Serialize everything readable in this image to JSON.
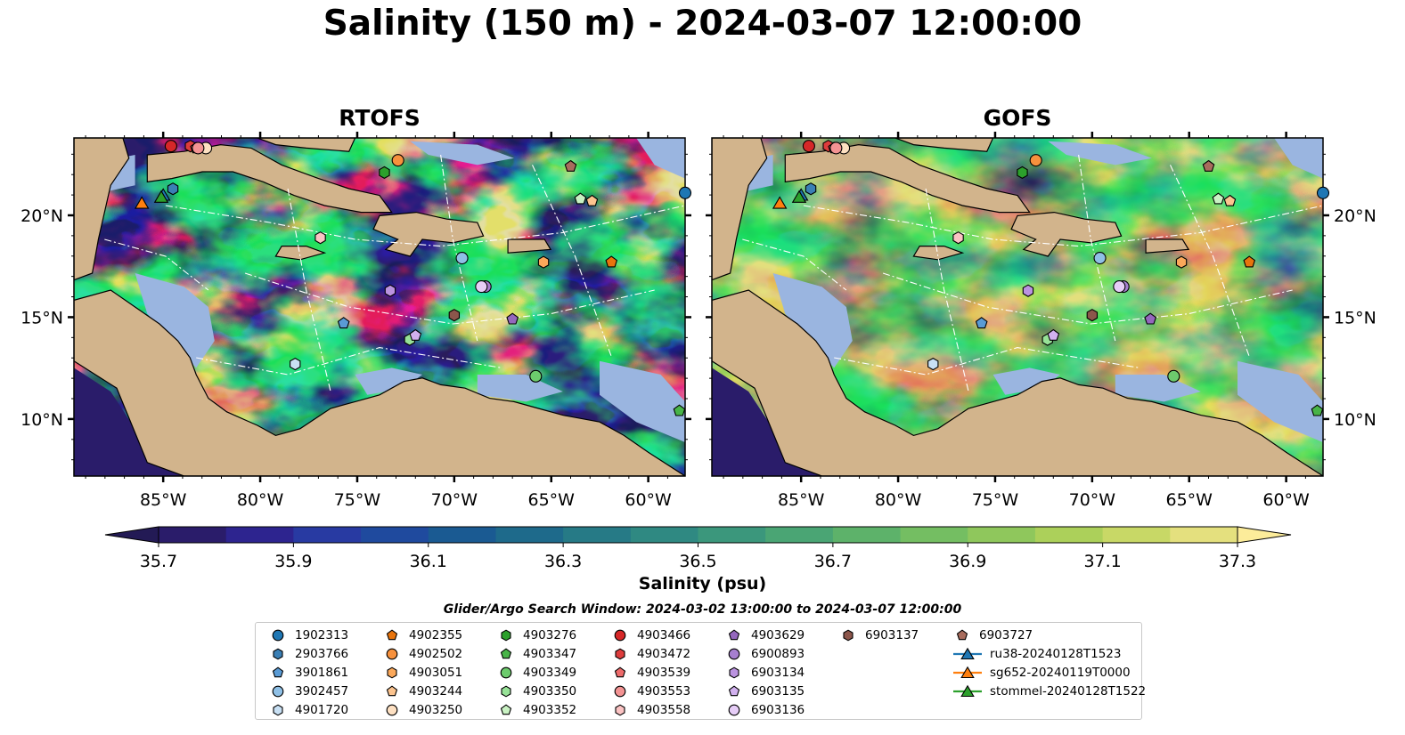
{
  "title": "Salinity (150 m) - 2024-03-07 12:00:00",
  "panels": [
    {
      "id": "rtofs",
      "title": "RTOFS",
      "field_tone": "variable"
    },
    {
      "id": "gofs",
      "title": "GOFS",
      "field_tone": "uniform"
    }
  ],
  "axes": {
    "x_ticks": [
      "85°W",
      "80°W",
      "75°W",
      "70°W",
      "65°W",
      "60°W"
    ],
    "x_tick_lon": [
      -85,
      -80,
      -75,
      -70,
      -65,
      -60
    ],
    "y_ticks": [
      "20°N",
      "15°N",
      "10°N"
    ],
    "y_tick_lat": [
      20,
      15,
      10
    ],
    "lon_range": [
      -89.6,
      -58.1
    ],
    "lat_range": [
      7.2,
      23.8
    ]
  },
  "colorbar": {
    "label": "Salinity (psu)",
    "tick_labels": [
      "35.7",
      "35.9",
      "36.1",
      "36.3",
      "36.5",
      "36.7",
      "36.9",
      "37.1",
      "37.3"
    ],
    "min": 35.7,
    "max": 37.3,
    "step": 0.1,
    "extend": "both",
    "colormap": "haline",
    "colors": [
      "#2a1c6a",
      "#2d248f",
      "#283aa2",
      "#1f4a9e",
      "#1a5a92",
      "#1e6a8b",
      "#267a86",
      "#2f8982",
      "#3b977c",
      "#4aa574",
      "#5db26a",
      "#74be62",
      "#8fc75c",
      "#acd05a",
      "#c8d866",
      "#e4e07e"
    ],
    "under_color": "#231a55",
    "over_color": "#fcec9a"
  },
  "map_colors": {
    "land": "#d2b48c",
    "shelf": "#9ab5e0",
    "deep_pacific": "#2a1c6a",
    "eez": "#ffffff",
    "coast": "#000000"
  },
  "legend": {
    "title": "Glider/Argo Search Window: 2024-03-02 13:00:00 to 2024-03-07 12:00:00",
    "items": [
      {
        "label": "1902313",
        "marker": "circle",
        "color": "#1f77b4"
      },
      {
        "label": "2903766",
        "marker": "hexagon",
        "color": "#3a7fb5"
      },
      {
        "label": "3901861",
        "marker": "pentagon",
        "color": "#5a9bd5"
      },
      {
        "label": "3902457",
        "marker": "circle",
        "color": "#8fc0e6"
      },
      {
        "label": "4901720",
        "marker": "hexagon",
        "color": "#c8e0f4"
      },
      {
        "label": "4902355",
        "marker": "pentagon",
        "color": "#e8740c"
      },
      {
        "label": "4902502",
        "marker": "circle",
        "color": "#f7913d"
      },
      {
        "label": "4903051",
        "marker": "hexagon",
        "color": "#fba85a"
      },
      {
        "label": "4903244",
        "marker": "pentagon",
        "color": "#fcc48f"
      },
      {
        "label": "4903250",
        "marker": "circle",
        "color": "#fde0c2"
      },
      {
        "label": "4903276",
        "marker": "hexagon",
        "color": "#2ca02c"
      },
      {
        "label": "4903347",
        "marker": "pentagon",
        "color": "#48b448"
      },
      {
        "label": "4903349",
        "marker": "circle",
        "color": "#6dcb6d"
      },
      {
        "label": "4903350",
        "marker": "hexagon",
        "color": "#97e297"
      },
      {
        "label": "4903352",
        "marker": "pentagon",
        "color": "#c9f2c3"
      },
      {
        "label": "4903466",
        "marker": "circle",
        "color": "#d62728"
      },
      {
        "label": "4903472",
        "marker": "hexagon",
        "color": "#de3c3c"
      },
      {
        "label": "4903539",
        "marker": "pentagon",
        "color": "#ee6b6b"
      },
      {
        "label": "4903553",
        "marker": "circle",
        "color": "#f39393"
      },
      {
        "label": "4903558",
        "marker": "hexagon",
        "color": "#fbc3c3"
      },
      {
        "label": "4903629",
        "marker": "pentagon",
        "color": "#9467bd"
      },
      {
        "label": "6900893",
        "marker": "circle",
        "color": "#a67fd0"
      },
      {
        "label": "6903134",
        "marker": "hexagon",
        "color": "#bb93e0"
      },
      {
        "label": "6903135",
        "marker": "pentagon",
        "color": "#d2b1ef"
      },
      {
        "label": "6903136",
        "marker": "circle",
        "color": "#e6cdf7"
      },
      {
        "label": "6903137",
        "marker": "hexagon",
        "color": "#8c564b"
      },
      {
        "label": "6903727",
        "marker": "pentagon",
        "color": "#a86c5d"
      },
      {
        "label": "ru38-20240128T1523",
        "marker": "triangle",
        "color": "#1f77b4",
        "line": true
      },
      {
        "label": "sg652-20240119T0000",
        "marker": "triangle",
        "color": "#ff7f0e",
        "line": true
      },
      {
        "label": "stommel-20240128T1522",
        "marker": "triangle",
        "color": "#2ca02c",
        "line": true
      }
    ]
  },
  "platforms": [
    {
      "label": "1902313",
      "lon": -58.1,
      "lat": 21.1
    },
    {
      "label": "2903766",
      "lon": -84.5,
      "lat": 21.3
    },
    {
      "label": "3901861",
      "lon": -75.7,
      "lat": 14.7
    },
    {
      "label": "3902457",
      "lon": -69.6,
      "lat": 17.9
    },
    {
      "label": "4901720",
      "lon": -78.2,
      "lat": 12.7
    },
    {
      "label": "4902355",
      "lon": -61.9,
      "lat": 17.7
    },
    {
      "label": "4902502",
      "lon": -72.9,
      "lat": 22.7
    },
    {
      "label": "4903051",
      "lon": -65.4,
      "lat": 17.7
    },
    {
      "label": "4903244",
      "lon": -62.9,
      "lat": 20.7
    },
    {
      "label": "4903250",
      "lon": -82.8,
      "lat": 23.3
    },
    {
      "label": "4903276",
      "lon": -73.6,
      "lat": 22.1
    },
    {
      "label": "4903347",
      "lon": -58.4,
      "lat": 10.4
    },
    {
      "label": "4903349",
      "lon": -65.8,
      "lat": 12.1
    },
    {
      "label": "4903350",
      "lon": -72.3,
      "lat": 13.9
    },
    {
      "label": "4903352",
      "lon": -63.5,
      "lat": 20.8
    },
    {
      "label": "4903466",
      "lon": -84.6,
      "lat": 23.4
    },
    {
      "label": "4903472",
      "lon": -83.6,
      "lat": 23.4
    },
    {
      "label": "4903539",
      "lon": -83.3,
      "lat": 23.3
    },
    {
      "label": "4903553",
      "lon": -83.2,
      "lat": 23.3
    },
    {
      "label": "4903558",
      "lon": -76.9,
      "lat": 18.9
    },
    {
      "label": "4903629",
      "lon": -67.0,
      "lat": 14.9
    },
    {
      "label": "6900893",
      "lon": -68.4,
      "lat": 16.5
    },
    {
      "label": "6903134",
      "lon": -73.3,
      "lat": 16.3
    },
    {
      "label": "6903135",
      "lon": -72.0,
      "lat": 14.1
    },
    {
      "label": "6903136",
      "lon": -68.6,
      "lat": 16.5
    },
    {
      "label": "6903137",
      "lon": -70.0,
      "lat": 15.1
    },
    {
      "label": "6903727",
      "lon": -64.0,
      "lat": 22.4
    },
    {
      "label": "ru38-20240128T1523",
      "lon": -85.0,
      "lat": 21.0
    },
    {
      "label": "sg652-20240119T0000",
      "lon": -86.1,
      "lat": 20.6
    },
    {
      "label": "stommel-20240128T1522",
      "lon": -85.1,
      "lat": 20.9
    }
  ]
}
